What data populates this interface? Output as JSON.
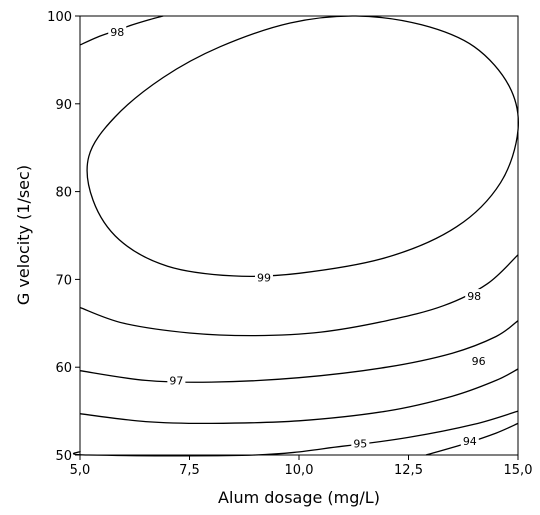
{
  "chart_data": {
    "type": "contour",
    "title": "",
    "xlabel": "Alum dosage (mg/L)",
    "ylabel": "G velocity (1/sec)",
    "xlim": [
      5,
      15
    ],
    "ylim": [
      50,
      100
    ],
    "x_ticks": [
      5,
      7.5,
      10,
      12.5,
      15
    ],
    "x_tick_labels": [
      "5,0",
      "7,5",
      "10,0",
      "12,5",
      "15,0"
    ],
    "y_ticks": [
      50,
      60,
      70,
      80,
      90,
      100
    ],
    "y_tick_labels": [
      "50",
      "60",
      "70",
      "80",
      "90",
      "100"
    ],
    "grid": false,
    "line_color": "#000000",
    "contours": [
      {
        "level": "98",
        "closed": false,
        "points": [
          [
            5.0,
            96.7
          ],
          [
            5.4,
            97.6
          ],
          [
            5.8,
            98.3
          ],
          [
            6.2,
            99.0
          ],
          [
            6.6,
            99.6
          ],
          [
            6.9,
            100.0
          ]
        ]
      },
      {
        "level": "99",
        "closed": true,
        "points": [
          [
            11.3,
            100.0
          ],
          [
            12.8,
            99.0
          ],
          [
            14.0,
            96.5
          ],
          [
            14.8,
            92.0
          ],
          [
            15.0,
            87.0
          ],
          [
            14.6,
            81.0
          ],
          [
            13.6,
            76.0
          ],
          [
            12.0,
            72.5
          ],
          [
            10.0,
            70.7
          ],
          [
            8.5,
            70.4
          ],
          [
            7.0,
            71.5
          ],
          [
            5.9,
            74.5
          ],
          [
            5.3,
            79.0
          ],
          [
            5.2,
            84.0
          ],
          [
            5.8,
            88.5
          ],
          [
            6.9,
            93.0
          ],
          [
            8.2,
            96.5
          ],
          [
            9.8,
            99.2
          ]
        ]
      },
      {
        "level": "98",
        "closed": false,
        "points": [
          [
            5.0,
            66.8
          ],
          [
            6.0,
            65.0
          ],
          [
            7.5,
            63.9
          ],
          [
            9.0,
            63.6
          ],
          [
            10.5,
            64.0
          ],
          [
            12.0,
            65.3
          ],
          [
            13.3,
            67.0
          ],
          [
            14.3,
            69.5
          ],
          [
            15.0,
            72.8
          ]
        ]
      },
      {
        "level": "97",
        "closed": false,
        "points": [
          [
            5.0,
            59.6
          ],
          [
            6.5,
            58.5
          ],
          [
            8.0,
            58.3
          ],
          [
            10.0,
            58.8
          ],
          [
            12.0,
            60.0
          ],
          [
            13.5,
            61.6
          ],
          [
            14.5,
            63.5
          ],
          [
            15.0,
            65.3
          ]
        ]
      },
      {
        "level": "96",
        "closed": false,
        "points": [
          [
            5.0,
            54.7
          ],
          [
            6.5,
            53.8
          ],
          [
            8.0,
            53.6
          ],
          [
            10.0,
            53.9
          ],
          [
            12.0,
            55.0
          ],
          [
            13.5,
            56.7
          ],
          [
            14.5,
            58.5
          ],
          [
            15.0,
            59.8
          ]
        ]
      },
      {
        "level": "95",
        "closed": false,
        "points": [
          [
            5.0,
            50.4
          ],
          [
            5.2,
            50.0
          ],
          [
            9.0,
            50.0
          ],
          [
            11.0,
            51.0
          ],
          [
            12.5,
            52.0
          ],
          [
            14.0,
            53.5
          ],
          [
            15.0,
            55.0
          ]
        ]
      },
      {
        "level": "94",
        "closed": false,
        "points": [
          [
            12.9,
            50.0
          ],
          [
            13.8,
            51.3
          ],
          [
            14.5,
            52.5
          ],
          [
            15.0,
            53.6
          ]
        ]
      }
    ],
    "contour_labels": [
      {
        "text": "98",
        "x": 5.85,
        "y": 98.2
      },
      {
        "text": "99",
        "x": 9.2,
        "y": 70.2
      },
      {
        "text": "98",
        "x": 14.0,
        "y": 68.1
      },
      {
        "text": "97",
        "x": 7.2,
        "y": 58.5
      },
      {
        "text": "96",
        "x": 14.1,
        "y": 60.7
      },
      {
        "text": "95",
        "x": 11.4,
        "y": 51.3
      },
      {
        "text": "94",
        "x": 13.9,
        "y": 51.6
      }
    ]
  }
}
